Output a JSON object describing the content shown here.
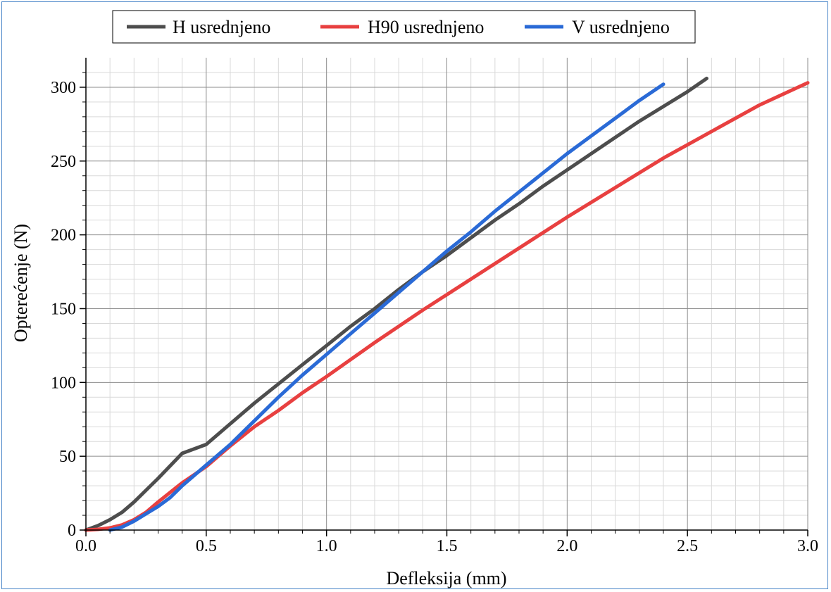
{
  "chart_data": {
    "type": "line",
    "title": "",
    "xlabel": "Defleksija (mm)",
    "ylabel": "Opterećenje (N)",
    "xlim": [
      0.0,
      3.0
    ],
    "ylim": [
      0,
      320
    ],
    "xticks": [
      0.0,
      0.5,
      1.0,
      1.5,
      2.0,
      2.5,
      3.0
    ],
    "xtick_labels": [
      "0.0",
      "0.5",
      "1.0",
      "1.5",
      "2.0",
      "2.5",
      "3.0"
    ],
    "yticks": [
      0,
      50,
      100,
      150,
      200,
      250,
      300
    ],
    "ytick_labels": [
      "0",
      "50",
      "100",
      "150",
      "200",
      "250",
      "300"
    ],
    "grid": true,
    "legend_position": "top",
    "series": [
      {
        "name": "H usrednjeno",
        "color": "#4d4d4d",
        "x": [
          0.0,
          0.05,
          0.1,
          0.15,
          0.2,
          0.25,
          0.3,
          0.4,
          0.5,
          0.6,
          0.7,
          0.8,
          0.9,
          1.0,
          1.1,
          1.2,
          1.3,
          1.4,
          1.5,
          1.6,
          1.7,
          1.8,
          1.9,
          2.0,
          2.1,
          2.2,
          2.3,
          2.4,
          2.5,
          2.58
        ],
        "y": [
          0,
          3,
          7,
          12,
          19,
          27,
          35,
          52,
          58,
          72,
          86,
          99,
          112,
          125,
          138,
          150,
          163,
          175,
          186,
          198,
          210,
          221,
          233,
          244,
          255,
          266,
          277,
          287,
          297,
          306
        ]
      },
      {
        "name": "H90 usrednjeno",
        "color": "#e84040",
        "x": [
          0.0,
          0.05,
          0.1,
          0.15,
          0.2,
          0.25,
          0.3,
          0.4,
          0.5,
          0.6,
          0.7,
          0.8,
          0.9,
          1.0,
          1.2,
          1.4,
          1.6,
          1.8,
          2.0,
          2.2,
          2.4,
          2.6,
          2.8,
          3.0
        ],
        "y": [
          0,
          0.5,
          1.5,
          3.5,
          7,
          12,
          19,
          32,
          43,
          57,
          70,
          81,
          93,
          104,
          127,
          149,
          170,
          191,
          212,
          232,
          252,
          270,
          288,
          303
        ]
      },
      {
        "name": "V usrednjeno",
        "color": "#2a6ad6",
        "x": [
          0.1,
          0.15,
          0.2,
          0.25,
          0.3,
          0.35,
          0.4,
          0.5,
          0.6,
          0.7,
          0.8,
          0.9,
          1.0,
          1.1,
          1.2,
          1.3,
          1.4,
          1.5,
          1.6,
          1.7,
          1.8,
          1.9,
          2.0,
          2.1,
          2.2,
          2.3,
          2.4
        ],
        "y": [
          0,
          2,
          6,
          11,
          16,
          22,
          30,
          44,
          58,
          74,
          90,
          105,
          119,
          133,
          147,
          161,
          175,
          189,
          202,
          216,
          229,
          242,
          255,
          267,
          279,
          291,
          302
        ]
      }
    ]
  }
}
